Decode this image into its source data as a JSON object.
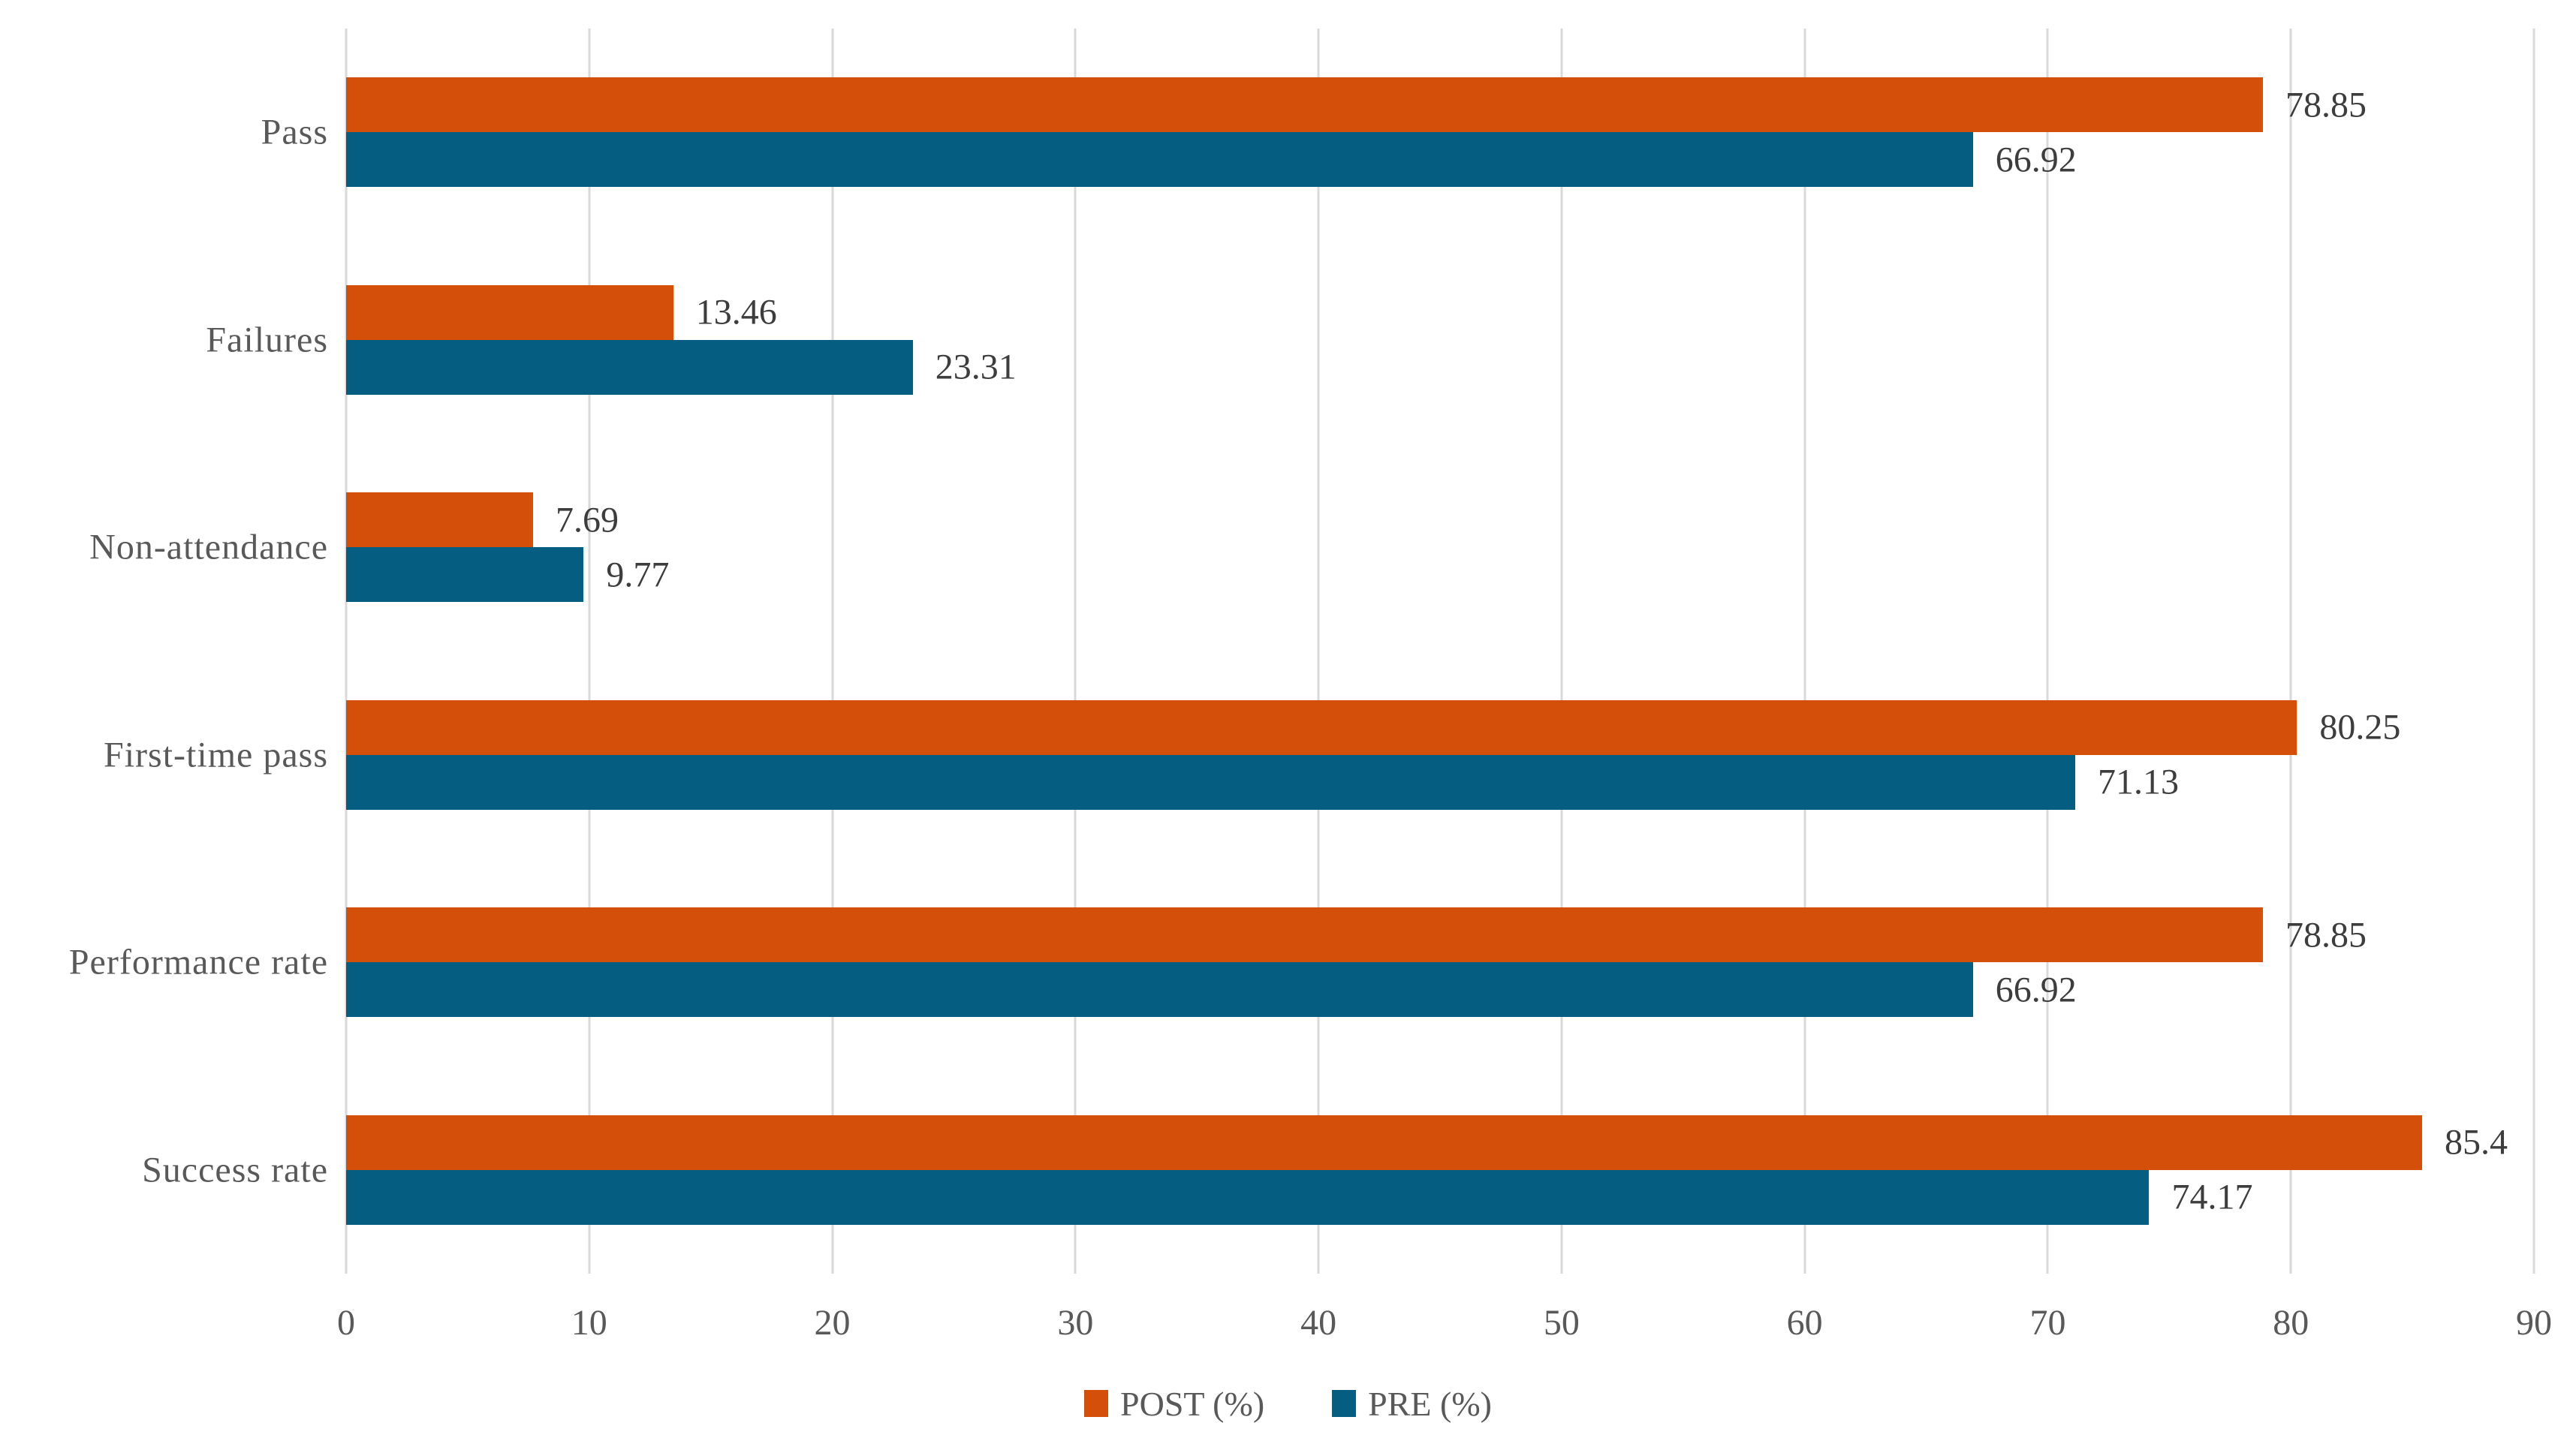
{
  "chart_data": {
    "type": "bar",
    "orientation": "horizontal",
    "title": "",
    "xlabel": "",
    "ylabel": "",
    "categories": [
      "Pass",
      "Failures",
      "Non-attendance",
      "First-time pass",
      "Performance rate",
      "Success rate"
    ],
    "series": [
      {
        "name": "POST (%)",
        "color": "#d4500a",
        "values": [
          78.85,
          13.46,
          7.69,
          80.25,
          78.85,
          85.4
        ]
      },
      {
        "name": "PRE (%)",
        "color": "#055e81",
        "values": [
          66.92,
          23.31,
          9.77,
          71.13,
          66.92,
          74.17
        ]
      }
    ],
    "xlim": [
      0,
      90
    ],
    "xticks": [
      0,
      10,
      20,
      30,
      40,
      50,
      60,
      70,
      80,
      90
    ],
    "grid": "vertical",
    "gridline_color": "#d9d9d9",
    "value_labels": true,
    "value_label_color": "#3d3d3d",
    "axis_label_color": "#595959",
    "legend_position": "bottom"
  }
}
